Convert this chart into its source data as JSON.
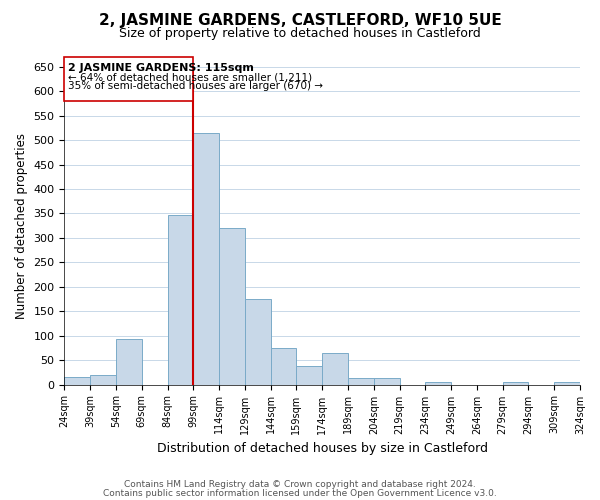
{
  "title": "2, JASMINE GARDENS, CASTLEFORD, WF10 5UE",
  "subtitle": "Size of property relative to detached houses in Castleford",
  "xlabel": "Distribution of detached houses by size in Castleford",
  "ylabel": "Number of detached properties",
  "bar_labels": [
    "24sqm",
    "39sqm",
    "54sqm",
    "69sqm",
    "84sqm",
    "99sqm",
    "114sqm",
    "129sqm",
    "144sqm",
    "159sqm",
    "174sqm",
    "189sqm",
    "204sqm",
    "219sqm",
    "234sqm",
    "249sqm",
    "264sqm",
    "279sqm",
    "294sqm",
    "309sqm",
    "324sqm"
  ],
  "bar_heights": [
    15,
    20,
    93,
    0,
    347,
    515,
    320,
    175,
    75,
    38,
    65,
    13,
    13,
    0,
    5,
    0,
    0,
    5,
    0,
    5
  ],
  "bar_color": "#c8d8e8",
  "bar_edge_color": "#7aaac8",
  "vline_x": 5.0,
  "vline_color": "#cc0000",
  "ylim": [
    0,
    650
  ],
  "yticks": [
    0,
    50,
    100,
    150,
    200,
    250,
    300,
    350,
    400,
    450,
    500,
    550,
    600,
    650
  ],
  "annotation_title": "2 JASMINE GARDENS: 115sqm",
  "annotation_line1": "← 64% of detached houses are smaller (1,211)",
  "annotation_line2": "35% of semi-detached houses are larger (670) →",
  "footer1": "Contains HM Land Registry data © Crown copyright and database right 2024.",
  "footer2": "Contains public sector information licensed under the Open Government Licence v3.0.",
  "bg_color": "#ffffff",
  "grid_color": "#c8d8e8"
}
